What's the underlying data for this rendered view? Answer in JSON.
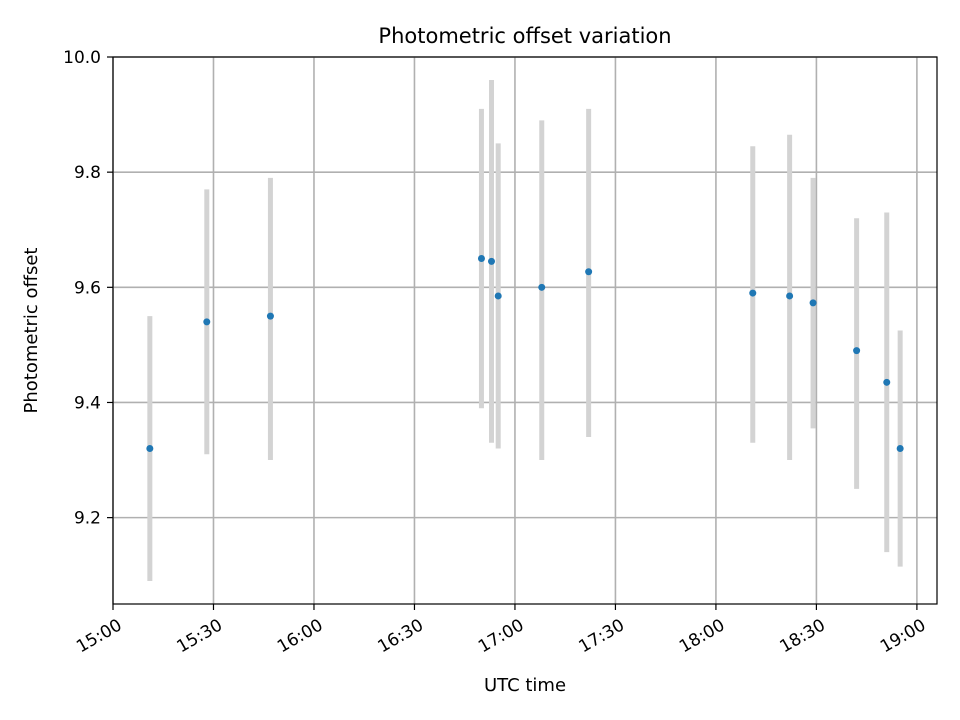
{
  "chart_data": {
    "type": "scatter",
    "title": "Photometric offset variation",
    "xlabel": "UTC time",
    "ylabel": "Photometric offset",
    "x_unit": "minutes",
    "xlim": [
      "15:00",
      "19:06"
    ],
    "ylim": [
      9.05,
      10.0
    ],
    "grid": true,
    "x_ticks": [
      "15:00",
      "15:30",
      "16:00",
      "16:30",
      "17:00",
      "17:30",
      "18:00",
      "18:30",
      "19:00"
    ],
    "y_ticks": [
      9.2,
      9.4,
      9.6,
      9.8,
      10.0
    ],
    "y_tick_labels": [
      "9.2",
      "9.4",
      "9.6",
      "9.8",
      "10.0"
    ],
    "series": [
      {
        "color": "#1f77b4",
        "error_color": "#d3d3d3",
        "points": [
          {
            "x": "15:11",
            "y": 9.32,
            "ylow": 9.09,
            "yhigh": 9.55
          },
          {
            "x": "15:28",
            "y": 9.54,
            "ylow": 9.31,
            "yhigh": 9.77
          },
          {
            "x": "15:47",
            "y": 9.55,
            "ylow": 9.3,
            "yhigh": 9.79
          },
          {
            "x": "16:50",
            "y": 9.65,
            "ylow": 9.39,
            "yhigh": 9.91
          },
          {
            "x": "16:53",
            "y": 9.645,
            "ylow": 9.33,
            "yhigh": 9.96
          },
          {
            "x": "16:55",
            "y": 9.585,
            "ylow": 9.32,
            "yhigh": 9.85
          },
          {
            "x": "17:08",
            "y": 9.6,
            "ylow": 9.3,
            "yhigh": 9.89
          },
          {
            "x": "17:22",
            "y": 9.627,
            "ylow": 9.34,
            "yhigh": 9.91
          },
          {
            "x": "18:11",
            "y": 9.59,
            "ylow": 9.33,
            "yhigh": 9.845
          },
          {
            "x": "18:22",
            "y": 9.585,
            "ylow": 9.3,
            "yhigh": 9.865
          },
          {
            "x": "18:29",
            "y": 9.573,
            "ylow": 9.355,
            "yhigh": 9.79
          },
          {
            "x": "18:42",
            "y": 9.49,
            "ylow": 9.25,
            "yhigh": 9.72
          },
          {
            "x": "18:51",
            "y": 9.435,
            "ylow": 9.14,
            "yhigh": 9.73
          },
          {
            "x": "18:55",
            "y": 9.32,
            "ylow": 9.115,
            "yhigh": 9.525
          }
        ]
      }
    ]
  }
}
